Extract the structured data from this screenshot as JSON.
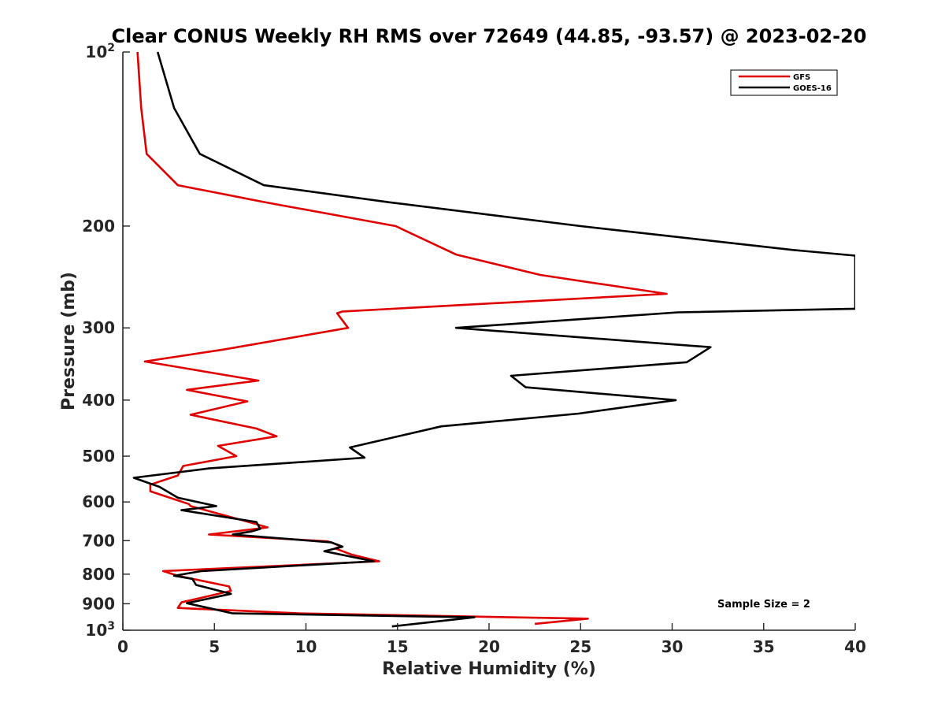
{
  "chart_data": {
    "type": "line",
    "title": "Clear CONUS Weekly RH RMS over 72649 (44.85, -93.57) @ 2023-02-20",
    "xlabel": "Relative Humidity (%)",
    "ylabel": "Pressure (mb)",
    "xlim": [
      0,
      40
    ],
    "ylim": [
      1000,
      100
    ],
    "yscale": "log",
    "grid": false,
    "legend_position": "top-right",
    "note": "Sample Size = 2",
    "x_ticks": [
      "0",
      "5",
      "10",
      "15",
      "20",
      "25",
      "30",
      "35",
      "40"
    ],
    "y_ticks": [
      {
        "value": 100,
        "label": "10",
        "sup": "2"
      },
      {
        "value": 200,
        "label": "200",
        "sup": ""
      },
      {
        "value": 300,
        "label": "300",
        "sup": ""
      },
      {
        "value": 400,
        "label": "400",
        "sup": ""
      },
      {
        "value": 500,
        "label": "500",
        "sup": ""
      },
      {
        "value": 600,
        "label": "600",
        "sup": ""
      },
      {
        "value": 700,
        "label": "700",
        "sup": ""
      },
      {
        "value": 800,
        "label": "800",
        "sup": ""
      },
      {
        "value": 900,
        "label": "900",
        "sup": ""
      },
      {
        "value": 1000,
        "label": "10",
        "sup": "3"
      }
    ],
    "series": [
      {
        "name": "GFS",
        "color": "#e00000",
        "points": [
          [
            0.8,
            100
          ],
          [
            1.0,
            125
          ],
          [
            1.3,
            150
          ],
          [
            3.0,
            170
          ],
          [
            7.8,
            182
          ],
          [
            14.9,
            200
          ],
          [
            18.2,
            224
          ],
          [
            22.8,
            243
          ],
          [
            29.7,
            262
          ],
          [
            12.0,
            281
          ],
          [
            11.7,
            283
          ],
          [
            12.3,
            300
          ],
          [
            5.5,
            327
          ],
          [
            1.2,
            343
          ],
          [
            7.4,
            370
          ],
          [
            3.5,
            384
          ],
          [
            6.8,
            402
          ],
          [
            3.7,
            424
          ],
          [
            7.3,
            448
          ],
          [
            8.4,
            462
          ],
          [
            5.2,
            480
          ],
          [
            6.2,
            500
          ],
          [
            3.3,
            520
          ],
          [
            3.0,
            540
          ],
          [
            1.5,
            560
          ],
          [
            1.5,
            575
          ],
          [
            3.6,
            605
          ],
          [
            3.7,
            610
          ],
          [
            6.9,
            650
          ],
          [
            7.9,
            664
          ],
          [
            4.7,
            683
          ],
          [
            11.2,
            702
          ],
          [
            11.9,
            715
          ],
          [
            11.6,
            722
          ],
          [
            12.5,
            740
          ],
          [
            14.0,
            760
          ],
          [
            2.2,
            790
          ],
          [
            3.0,
            805
          ],
          [
            5.8,
            840
          ],
          [
            5.9,
            855
          ],
          [
            3.2,
            895
          ],
          [
            3.0,
            915
          ],
          [
            9.6,
            935
          ],
          [
            25.4,
            955
          ],
          [
            22.5,
            975
          ]
        ]
      },
      {
        "name": "GOES-16",
        "color": "#000000",
        "points": [
          [
            1.9,
            100
          ],
          [
            2.8,
            125
          ],
          [
            4.2,
            150
          ],
          [
            7.7,
            170
          ],
          [
            14.6,
            182
          ],
          [
            25.0,
            200
          ],
          [
            36.6,
            220
          ],
          [
            40.0,
            225
          ],
          [
            40.0,
            278
          ],
          [
            30.3,
            282
          ],
          [
            18.2,
            300
          ],
          [
            32.1,
            324
          ],
          [
            30.8,
            344
          ],
          [
            21.2,
            363
          ],
          [
            22.0,
            380
          ],
          [
            30.2,
            400
          ],
          [
            24.9,
            422
          ],
          [
            17.4,
            444
          ],
          [
            12.4,
            483
          ],
          [
            13.2,
            503
          ],
          [
            4.7,
            525
          ],
          [
            0.6,
            545
          ],
          [
            2.0,
            565
          ],
          [
            3.0,
            590
          ],
          [
            5.1,
            610
          ],
          [
            3.2,
            620
          ],
          [
            7.3,
            650
          ],
          [
            7.5,
            668
          ],
          [
            7.0,
            675
          ],
          [
            6.0,
            683
          ],
          [
            11.4,
            705
          ],
          [
            12.0,
            717
          ],
          [
            11.0,
            730
          ],
          [
            13.7,
            760
          ],
          [
            4.3,
            790
          ],
          [
            2.8,
            805
          ],
          [
            3.8,
            815
          ],
          [
            4.0,
            835
          ],
          [
            5.9,
            865
          ],
          [
            3.5,
            898
          ],
          [
            6.0,
            935
          ],
          [
            19.2,
            950
          ],
          [
            14.7,
            985
          ]
        ]
      }
    ]
  }
}
